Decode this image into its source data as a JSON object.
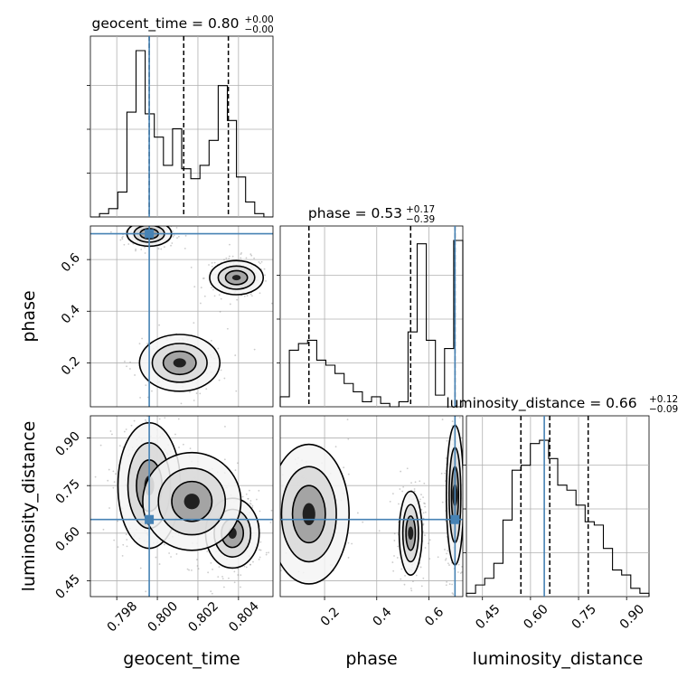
{
  "chart_data": {
    "type": "corner",
    "parameters": [
      "geocent_time",
      "phase",
      "luminosity_distance"
    ],
    "truths": {
      "geocent_time": 0.7996,
      "phase": 0.7,
      "luminosity_distance": 0.643
    },
    "titles": [
      {
        "param": "geocent_time",
        "label": "geocent_time = 0.80",
        "plus": "+0.00",
        "minus": "−0.00"
      },
      {
        "param": "phase",
        "label": "phase = 0.53",
        "plus": "+0.17",
        "minus": "−0.39"
      },
      {
        "param": "luminosity_distance",
        "label": "luminosity_distance = 0.66",
        "plus": "+0.12",
        "minus": "−0.09"
      }
    ],
    "axis_labels": {
      "x": [
        "geocent_time",
        "phase",
        "luminosity_distance"
      ],
      "y": [
        "phase",
        "luminosity_distance"
      ]
    },
    "ticks": {
      "geocent_time": {
        "values": [
          0.798,
          0.8,
          0.802,
          0.804
        ],
        "labels": [
          "0.798",
          "0.800",
          "0.802",
          "0.804"
        ],
        "range": [
          0.7967,
          0.8057
        ]
      },
      "phase": {
        "values": [
          0.2,
          0.4,
          0.6
        ],
        "labels": [
          "0.2",
          "0.4",
          "0.6"
        ],
        "range": [
          0.03,
          0.73
        ]
      },
      "luminosity_distance": {
        "values": [
          0.45,
          0.6,
          0.75,
          0.9
        ],
        "labels": [
          "0.45",
          "0.60",
          "0.75",
          "0.90"
        ],
        "range": [
          0.4,
          0.97
        ]
      }
    },
    "histograms": {
      "geocent_time": {
        "edges": [
          0.7967,
          0.79715,
          0.7976,
          0.79805,
          0.7985,
          0.79895,
          0.7994,
          0.79985,
          0.8003,
          0.80075,
          0.8012,
          0.80165,
          0.8021,
          0.80255,
          0.803,
          0.80345,
          0.8039,
          0.80435,
          0.8048,
          0.80525,
          0.8057
        ],
        "counts": [
          0,
          0.02,
          0.05,
          0.15,
          0.63,
          1.0,
          0.62,
          0.48,
          0.31,
          0.53,
          0.29,
          0.23,
          0.31,
          0.46,
          0.79,
          0.58,
          0.24,
          0.09,
          0.02,
          0.0
        ],
        "quantiles": [
          0.7996,
          0.8013,
          0.8035
        ]
      },
      "phase": {
        "edges": [
          0.03,
          0.065,
          0.1,
          0.135,
          0.17,
          0.205,
          0.24,
          0.275,
          0.31,
          0.345,
          0.38,
          0.415,
          0.45,
          0.485,
          0.52,
          0.555,
          0.59,
          0.625,
          0.66,
          0.695,
          0.73
        ],
        "counts": [
          0.06,
          0.34,
          0.38,
          0.4,
          0.28,
          0.25,
          0.2,
          0.14,
          0.09,
          0.03,
          0.06,
          0.02,
          0.0,
          0.03,
          0.45,
          0.98,
          0.4,
          0.07,
          0.35,
          1.0
        ],
        "quantiles": [
          0.14,
          0.53,
          0.7
        ]
      },
      "luminosity_distance": {
        "edges": [
          0.4,
          0.4285,
          0.457,
          0.4855,
          0.514,
          0.5425,
          0.571,
          0.5995,
          0.628,
          0.6565,
          0.685,
          0.7135,
          0.742,
          0.7705,
          0.799,
          0.8275,
          0.856,
          0.8845,
          0.913,
          0.9415,
          0.97
        ],
        "counts": [
          0.02,
          0.07,
          0.11,
          0.2,
          0.46,
          0.76,
          0.79,
          0.92,
          0.94,
          0.83,
          0.67,
          0.64,
          0.55,
          0.45,
          0.43,
          0.29,
          0.16,
          0.13,
          0.05,
          0.02
        ],
        "quantiles": [
          0.57,
          0.66,
          0.78
        ]
      }
    },
    "pair_densities": {
      "phase|geocent_time": {
        "clusters": [
          {
            "x": 0.7996,
            "y": 0.7,
            "sx": 0.0005,
            "sy": 0.022,
            "w": 1.0
          },
          {
            "x": 0.8039,
            "y": 0.53,
            "sx": 0.0006,
            "sy": 0.03,
            "w": 0.85
          },
          {
            "x": 0.8011,
            "y": 0.2,
            "sx": 0.0009,
            "sy": 0.05,
            "w": 0.55
          }
        ]
      },
      "luminosity_distance|geocent_time": {
        "clusters": [
          {
            "x": 0.7996,
            "y": 0.75,
            "sx": 0.0007,
            "sy": 0.09,
            "w": 1.0
          },
          {
            "x": 0.8037,
            "y": 0.6,
            "sx": 0.0006,
            "sy": 0.05,
            "w": 0.95
          },
          {
            "x": 0.8017,
            "y": 0.7,
            "sx": 0.0011,
            "sy": 0.07,
            "w": 0.4
          }
        ]
      },
      "luminosity_distance|phase": {
        "clusters": [
          {
            "x": 0.14,
            "y": 0.66,
            "sx": 0.07,
            "sy": 0.1,
            "w": 0.5
          },
          {
            "x": 0.53,
            "y": 0.6,
            "sx": 0.02,
            "sy": 0.06,
            "w": 0.9
          },
          {
            "x": 0.7,
            "y": 0.72,
            "sx": 0.015,
            "sy": 0.1,
            "w": 1.0
          }
        ]
      }
    },
    "grid": true,
    "colors": {
      "truth": "#4682b4",
      "hist": "#000000",
      "contour": "#000000",
      "grid": "#b0b0b0",
      "points": "#8c8c8c"
    }
  }
}
